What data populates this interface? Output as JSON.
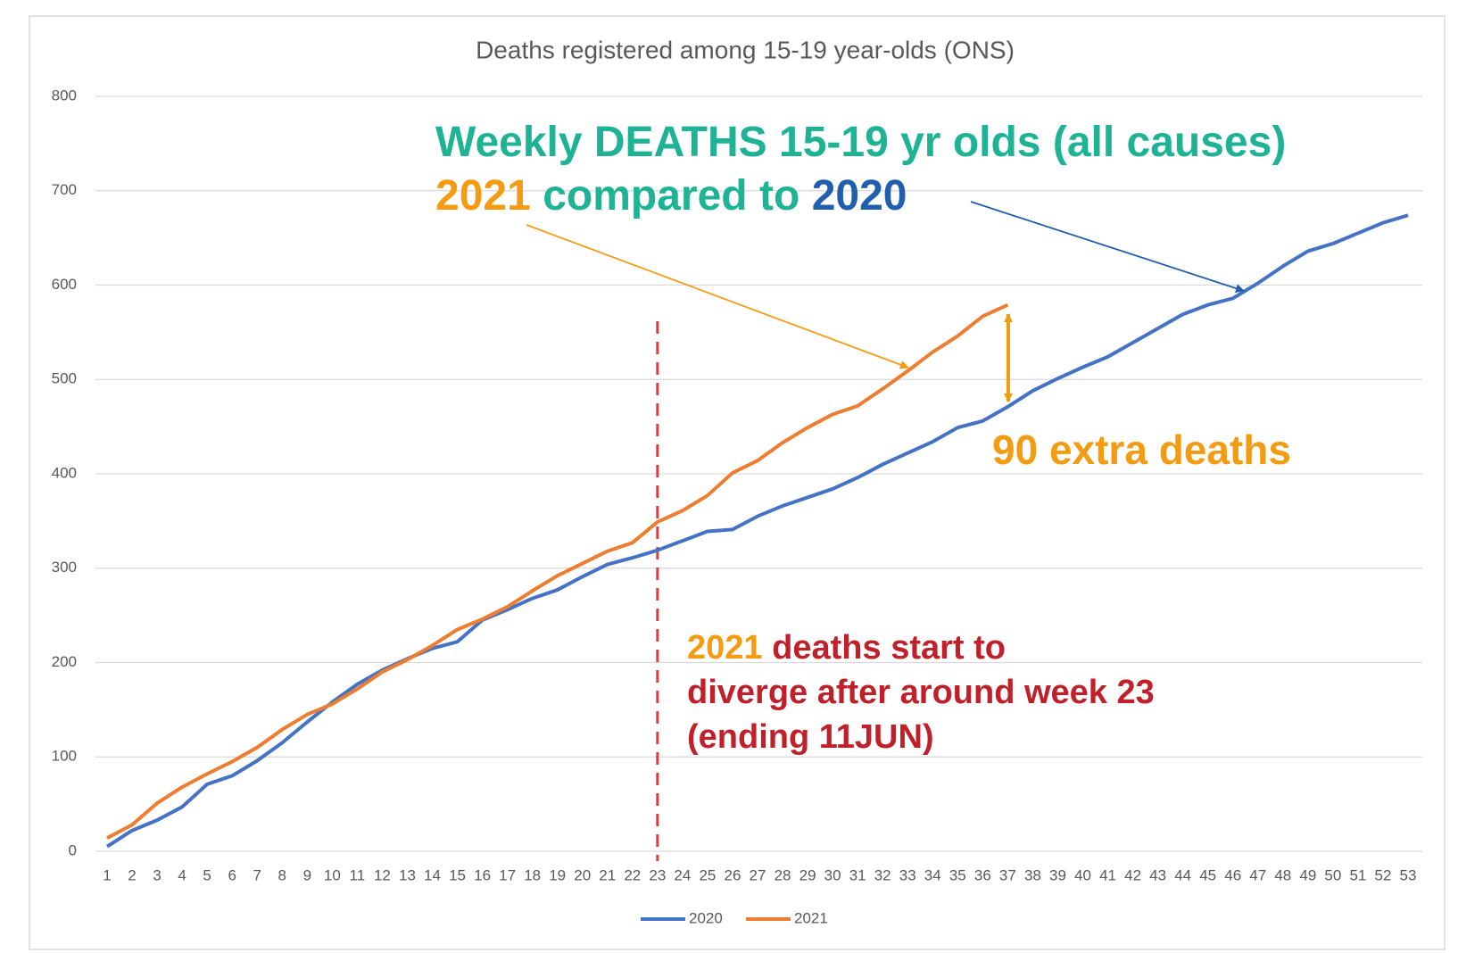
{
  "chart_data": {
    "type": "line",
    "title": "Deaths registered among 15-19 year-olds (ONS)",
    "categories": [
      1,
      2,
      3,
      4,
      5,
      6,
      7,
      8,
      9,
      10,
      11,
      12,
      13,
      14,
      15,
      16,
      17,
      18,
      19,
      20,
      21,
      22,
      23,
      24,
      25,
      26,
      27,
      28,
      29,
      30,
      31,
      32,
      33,
      34,
      35,
      36,
      37,
      38,
      39,
      40,
      41,
      42,
      43,
      44,
      45,
      46,
      47,
      48,
      49,
      50,
      51,
      52,
      53
    ],
    "series": [
      {
        "name": "2020",
        "color": "#4472c4",
        "values": [
          5,
          22,
          33,
          47,
          71,
          80,
          96,
          115,
          137,
          158,
          177,
          192,
          204,
          215,
          222,
          245,
          256,
          268,
          277,
          291,
          304,
          311,
          319,
          329,
          339,
          341,
          355,
          366,
          375,
          384,
          396,
          410,
          422,
          434,
          449,
          456,
          471,
          488,
          501,
          513,
          524,
          539,
          554,
          569,
          579,
          586,
          602,
          620,
          636,
          644,
          655,
          666,
          674
        ]
      },
      {
        "name": "2021",
        "color": "#ed7d31",
        "values": [
          14,
          28,
          51,
          68,
          82,
          95,
          110,
          129,
          145,
          156,
          172,
          190,
          203,
          218,
          235,
          246,
          259,
          276,
          292,
          305,
          318,
          327,
          349,
          361,
          377,
          401,
          414,
          433,
          449,
          463,
          472,
          490,
          509,
          529,
          546,
          567,
          579,
          null,
          null,
          null,
          null,
          null,
          null,
          null,
          null,
          null,
          null,
          null,
          null,
          null,
          null,
          null,
          null
        ]
      }
    ],
    "ylim": [
      0,
      800
    ],
    "yticks": [
      0,
      100,
      200,
      300,
      400,
      500,
      600,
      700,
      800
    ],
    "grid": true,
    "legend": "bottom",
    "annotations": [
      {
        "lines": [
          [
            {
              "text": "Weekly DEATHS 15-19 yr olds (all causes)",
              "color": "#1db394"
            }
          ],
          [
            {
              "text": "2021",
              "color": "#f39c12"
            },
            {
              "text": "compared to",
              "color": "#1db394"
            },
            {
              "text": "2020",
              "color": "#1f5fae"
            }
          ]
        ]
      },
      {
        "lines": [
          [
            {
              "text": "90 extra deaths",
              "color": "#f39c12"
            }
          ]
        ]
      },
      {
        "lines": [
          [
            {
              "text": "2021",
              "color": "#f39c12"
            },
            {
              "text": "deaths start to",
              "color": "#c0202a"
            }
          ],
          [
            {
              "text": "diverge after around week 23",
              "color": "#c0202a"
            }
          ],
          [
            {
              "text": "(ending 11JUN)",
              "color": "#c0202a"
            }
          ]
        ]
      }
    ]
  }
}
